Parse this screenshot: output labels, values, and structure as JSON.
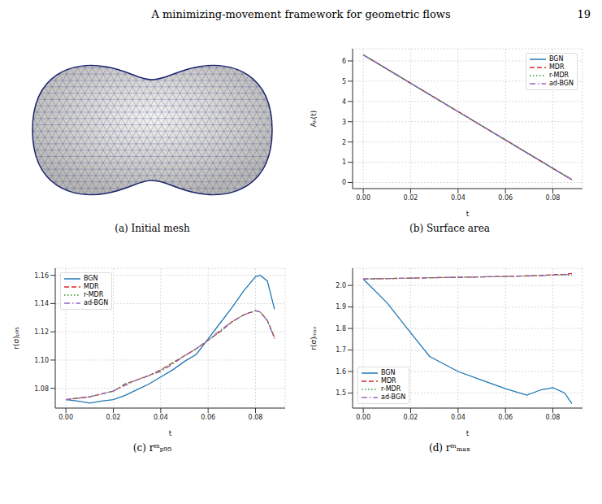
{
  "header": {
    "title": "A minimizing-movement framework for geometric flows",
    "page": "19"
  },
  "mesh_panel": {
    "caption": "(a) Initial mesh"
  },
  "chart_data": [
    {
      "type": "line",
      "title": "(b) Surface area",
      "x_label": "t",
      "y_label": "Aₕ(t)",
      "x": [
        0,
        0.01,
        0.02,
        0.03,
        0.04,
        0.05,
        0.06,
        0.07,
        0.08,
        0.088
      ],
      "series": [
        {
          "name": "BGN",
          "color": "#1f77b4",
          "line_style": "solid",
          "values": [
            6.3,
            5.6,
            4.9,
            4.2,
            3.5,
            2.8,
            2.1,
            1.4,
            0.7,
            0.14
          ]
        },
        {
          "name": "MDR",
          "color": "#d62728",
          "line_style": "dashed",
          "values": [
            6.3,
            5.6,
            4.9,
            4.2,
            3.5,
            2.8,
            2.1,
            1.4,
            0.7,
            0.14
          ]
        },
        {
          "name": "r-MDR",
          "color": "#2ca02c",
          "line_style": "dotted",
          "values": [
            6.3,
            5.6,
            4.9,
            4.2,
            3.5,
            2.8,
            2.1,
            1.4,
            0.7,
            0.14
          ]
        },
        {
          "name": "ad-BGN",
          "color": "#9467bd",
          "line_style": "dashdot",
          "values": [
            6.3,
            5.6,
            4.9,
            4.2,
            3.5,
            2.8,
            2.1,
            1.4,
            0.7,
            0.14
          ]
        }
      ],
      "xlim": [
        -0.0045,
        0.0925
      ],
      "xticks": [
        {
          "value": 0,
          "label": "0.00"
        },
        {
          "value": 0.02,
          "label": "0.02"
        },
        {
          "value": 0.04,
          "label": "0.04"
        },
        {
          "value": 0.06,
          "label": "0.06"
        },
        {
          "value": 0.08,
          "label": "0.08"
        }
      ],
      "ylim": [
        -0.3,
        6.6
      ],
      "yticks": [
        0,
        1,
        2,
        3,
        4,
        5,
        6
      ],
      "grid": true,
      "legend": "upper right"
    },
    {
      "type": "line",
      "title": "(c) rᵐₚ₉₅",
      "x_label": "t",
      "y_label": "r(σ)ₚ₉₅",
      "x": [
        0,
        0.005,
        0.01,
        0.015,
        0.02,
        0.025,
        0.03,
        0.035,
        0.04,
        0.045,
        0.05,
        0.055,
        0.06,
        0.065,
        0.07,
        0.075,
        0.08,
        0.082,
        0.085,
        0.088
      ],
      "series": [
        {
          "name": "BGN",
          "color": "#1f77b4",
          "line_style": "solid",
          "values": [
            1.072,
            1.071,
            1.0695,
            1.071,
            1.072,
            1.075,
            1.079,
            1.083,
            1.088,
            1.093,
            1.099,
            1.104,
            1.115,
            1.126,
            1.137,
            1.149,
            1.159,
            1.16,
            1.156,
            1.136
          ]
        },
        {
          "name": "MDR",
          "color": "#d62728",
          "line_style": "dashed",
          "values": [
            1.072,
            1.073,
            1.074,
            1.076,
            1.078,
            1.083,
            1.086,
            1.089,
            1.093,
            1.098,
            1.103,
            1.108,
            1.114,
            1.12,
            1.127,
            1.132,
            1.135,
            1.134,
            1.128,
            1.116
          ]
        },
        {
          "name": "r-MDR",
          "color": "#2ca02c",
          "line_style": "dotted",
          "values": [
            1.072,
            1.073,
            1.074,
            1.076,
            1.078,
            1.083,
            1.086,
            1.089,
            1.093,
            1.098,
            1.103,
            1.108,
            1.114,
            1.12,
            1.127,
            1.132,
            1.135,
            1.134,
            1.128,
            1.116
          ]
        },
        {
          "name": "ad-BGN",
          "color": "#9467bd",
          "line_style": "dashdot",
          "values": [
            1.072,
            1.073,
            1.074,
            1.076,
            1.078,
            1.082,
            1.086,
            1.089,
            1.092,
            1.097,
            1.103,
            1.108,
            1.114,
            1.121,
            1.127,
            1.132,
            1.135,
            1.134,
            1.128,
            1.115
          ]
        }
      ],
      "xlim": [
        -0.0045,
        0.0925
      ],
      "xticks": [
        {
          "value": 0,
          "label": "0.00"
        },
        {
          "value": 0.02,
          "label": "0.02"
        },
        {
          "value": 0.04,
          "label": "0.04"
        },
        {
          "value": 0.06,
          "label": "0.06"
        },
        {
          "value": 0.08,
          "label": "0.08"
        }
      ],
      "ylim": [
        1.066,
        1.165
      ],
      "yticks": [
        1.08,
        {
          "value": 1.1,
          "label": "1.10"
        },
        1.12,
        1.14,
        1.16
      ],
      "grid": true,
      "legend": "upper left"
    },
    {
      "type": "line",
      "title": "(d) rᵐₘₐₓ",
      "x_label": "t",
      "y_label": "r(σ)ₘₐₓ",
      "x": [
        0,
        0.01,
        0.02,
        0.028,
        0.04,
        0.05,
        0.06,
        0.069,
        0.075,
        0.08,
        0.085,
        0.088
      ],
      "series": [
        {
          "name": "BGN",
          "color": "#1f77b4",
          "line_style": "solid",
          "values": [
            2.03,
            1.92,
            1.78,
            1.67,
            1.6,
            1.56,
            1.52,
            1.49,
            1.515,
            1.525,
            1.5,
            1.45
          ]
        },
        {
          "name": "MDR",
          "color": "#d62728",
          "line_style": "dashed",
          "values": [
            2.03,
            2.032,
            2.034,
            2.036,
            2.038,
            2.04,
            2.042,
            2.045,
            2.047,
            2.05,
            2.052,
            2.056
          ]
        },
        {
          "name": "r-MDR",
          "color": "#2ca02c",
          "line_style": "dotted",
          "values": [
            2.03,
            2.032,
            2.034,
            2.036,
            2.038,
            2.04,
            2.042,
            2.044,
            2.046,
            2.048,
            2.048,
            2.047
          ]
        },
        {
          "name": "ad-BGN",
          "color": "#9467bd",
          "line_style": "dashdot",
          "values": [
            2.03,
            2.032,
            2.034,
            2.036,
            2.038,
            2.04,
            2.042,
            2.044,
            2.046,
            2.048,
            2.05,
            2.052
          ]
        }
      ],
      "xlim": [
        -0.0045,
        0.0925
      ],
      "xticks": [
        {
          "value": 0,
          "label": "0.00"
        },
        {
          "value": 0.02,
          "label": "0.02"
        },
        {
          "value": 0.04,
          "label": "0.04"
        },
        {
          "value": 0.06,
          "label": "0.06"
        },
        {
          "value": 0.08,
          "label": "0.08"
        }
      ],
      "ylim": [
        1.43,
        2.08
      ],
      "yticks": [
        1.5,
        1.6,
        1.7,
        1.8,
        1.9,
        {
          "value": 2,
          "label": "2.0"
        }
      ],
      "grid": true,
      "legend": "lower left"
    }
  ]
}
